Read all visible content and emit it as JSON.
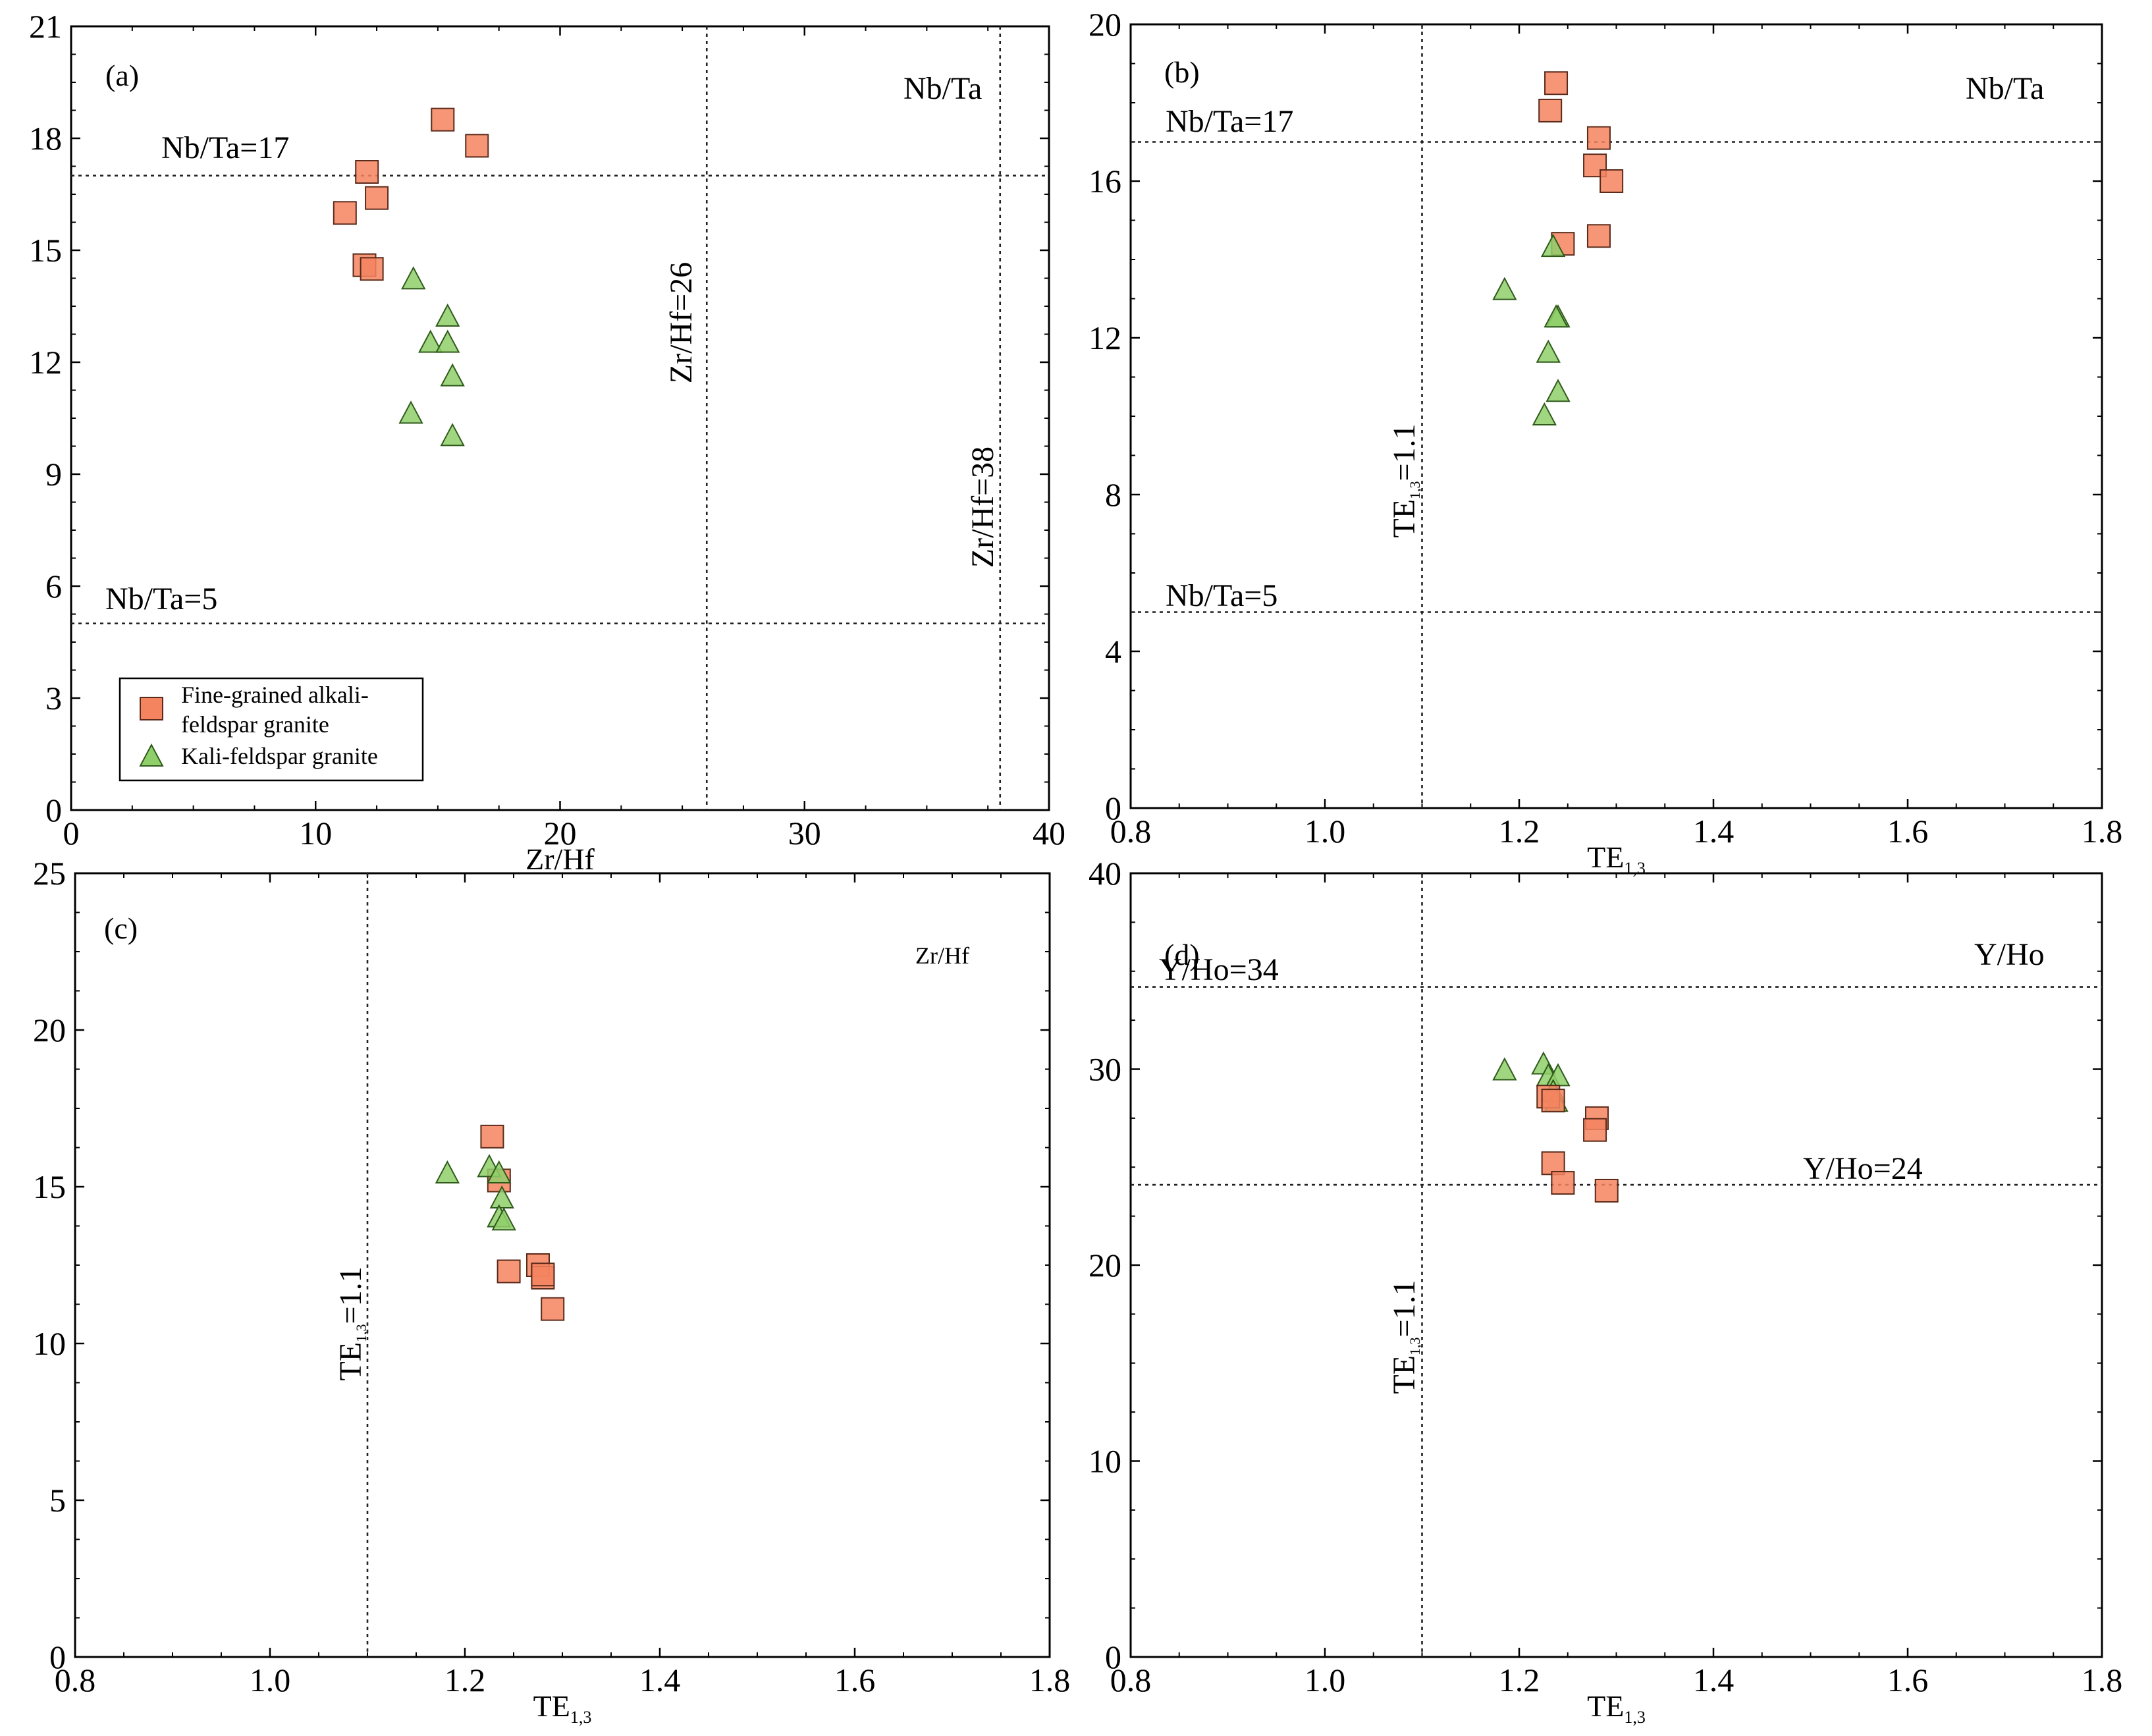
{
  "legend": {
    "items": [
      {
        "label_lines": [
          "Fine-grained alkali-",
          "feldspar granite"
        ],
        "marker": "square",
        "color": "#f4845f"
      },
      {
        "label_lines": [
          "Kali-feldspar granite"
        ],
        "marker": "triangle",
        "color": "#8fcf6a"
      }
    ]
  },
  "chart_data": [
    {
      "id": "a",
      "type": "scatter",
      "panel_label": "(a)",
      "title": "Nb/Ta",
      "xlabel": "Zr/Hf",
      "xlim": [
        0,
        40
      ],
      "ylim": [
        0,
        21
      ],
      "xticks": [
        0,
        10,
        20,
        30,
        40
      ],
      "yticks": [
        0,
        3,
        6,
        9,
        12,
        15,
        18,
        21
      ],
      "hlines": [
        {
          "y": 17,
          "label": "Nb/Ta=17"
        },
        {
          "y": 5,
          "label": "Nb/Ta=5"
        }
      ],
      "vlines": [
        {
          "x": 26,
          "label": "Zr/Hf=26"
        },
        {
          "x": 38,
          "label": "Zr/Hf=38"
        }
      ],
      "series": [
        {
          "name": "Fine-grained alkali-feldspar granite",
          "marker": "square",
          "points": [
            [
              15.2,
              18.5
            ],
            [
              16.6,
              17.8
            ],
            [
              12.1,
              17.1
            ],
            [
              12.5,
              16.4
            ],
            [
              11.2,
              16.0
            ],
            [
              12.0,
              14.6
            ],
            [
              12.3,
              14.5
            ]
          ]
        },
        {
          "name": "Kali-feldspar granite",
          "marker": "triangle",
          "points": [
            [
              14.0,
              14.2
            ],
            [
              15.4,
              13.2
            ],
            [
              14.7,
              12.5
            ],
            [
              15.4,
              12.5
            ],
            [
              15.6,
              11.6
            ],
            [
              13.9,
              10.6
            ],
            [
              15.6,
              10.0
            ]
          ]
        }
      ]
    },
    {
      "id": "b",
      "type": "scatter",
      "panel_label": "(b)",
      "title": "Nb/Ta",
      "xlabel": "TE1,3",
      "xlim": [
        0.8,
        1.8
      ],
      "ylim": [
        0,
        20
      ],
      "xticks": [
        "0.8",
        "1.0",
        "1.2",
        "1.4",
        "1.6",
        "1.8"
      ],
      "yticks": [
        0,
        4,
        8,
        12,
        16,
        20
      ],
      "hlines": [
        {
          "y": 17,
          "label": "Nb/Ta=17"
        },
        {
          "y": 5,
          "label": "Nb/Ta=5"
        }
      ],
      "vlines": [
        {
          "x": 1.1,
          "label": "TE1,3=1.1"
        }
      ],
      "series": [
        {
          "name": "Fine-grained alkali-feldspar granite",
          "marker": "square",
          "points": [
            [
              1.238,
              18.5
            ],
            [
              1.232,
              17.8
            ],
            [
              1.282,
              17.1
            ],
            [
              1.278,
              16.4
            ],
            [
              1.295,
              16.0
            ],
            [
              1.282,
              14.6
            ],
            [
              1.245,
              14.4
            ]
          ]
        },
        {
          "name": "Kali-feldspar granite",
          "marker": "triangle",
          "points": [
            [
              1.235,
              14.3
            ],
            [
              1.185,
              13.2
            ],
            [
              1.24,
              12.5
            ],
            [
              1.238,
              12.5
            ],
            [
              1.23,
              11.6
            ],
            [
              1.24,
              10.6
            ],
            [
              1.226,
              10.0
            ]
          ]
        }
      ]
    },
    {
      "id": "c",
      "type": "scatter",
      "panel_label": "(c)",
      "title": "Zr/Hf",
      "xlabel": "TE1,3",
      "xlim": [
        0.8,
        1.8
      ],
      "ylim": [
        0,
        25
      ],
      "xticks": [
        "0.8",
        "1.0",
        "1.2",
        "1.4",
        "1.6",
        "1.8"
      ],
      "yticks": [
        0,
        5,
        10,
        15,
        20,
        25
      ],
      "hlines": [],
      "vlines": [
        {
          "x": 1.1,
          "label": "TE1,3=1.1"
        }
      ],
      "series": [
        {
          "name": "Fine-grained alkali-feldspar granite",
          "marker": "square",
          "points": [
            [
              1.228,
              16.6
            ],
            [
              1.235,
              15.2
            ],
            [
              1.275,
              12.5
            ],
            [
              1.28,
              12.1
            ],
            [
              1.28,
              12.2
            ],
            [
              1.245,
              12.3
            ],
            [
              1.29,
              11.1
            ]
          ]
        },
        {
          "name": "Kali-feldspar granite",
          "marker": "triangle",
          "points": [
            [
              1.182,
              15.4
            ],
            [
              1.225,
              15.6
            ],
            [
              1.235,
              15.4
            ],
            [
              1.238,
              14.6
            ],
            [
              1.235,
              14.0
            ],
            [
              1.24,
              13.9
            ]
          ]
        }
      ]
    },
    {
      "id": "d",
      "type": "scatter",
      "panel_label": "(d)",
      "title": "Y/Ho",
      "xlabel": "TE1,3",
      "xlim": [
        0.8,
        1.8
      ],
      "ylim": [
        0,
        40
      ],
      "xticks": [
        "0.8",
        "1.0",
        "1.2",
        "1.4",
        "1.6",
        "1.8"
      ],
      "yticks": [
        0,
        10,
        20,
        30,
        40
      ],
      "hlines": [
        {
          "y": 34.2,
          "label": "Y/Ho=34"
        },
        {
          "y": 24.1,
          "label": "Y/Ho=24"
        }
      ],
      "vlines": [
        {
          "x": 1.1,
          "label": "TE1,3=1.1"
        }
      ],
      "series": [
        {
          "name": "Kali-feldspar granite",
          "marker": "triangle",
          "points": [
            [
              1.185,
              29.9
            ],
            [
              1.225,
              30.2
            ],
            [
              1.23,
              29.6
            ],
            [
              1.24,
              29.6
            ],
            [
              1.235,
              28.8
            ],
            [
              1.238,
              28.3
            ]
          ]
        },
        {
          "name": "Fine-grained alkali-feldspar granite",
          "marker": "square",
          "points": [
            [
              1.23,
              28.6
            ],
            [
              1.235,
              28.4
            ],
            [
              1.28,
              27.5
            ],
            [
              1.278,
              26.9
            ],
            [
              1.235,
              25.2
            ],
            [
              1.245,
              24.2
            ],
            [
              1.29,
              23.8
            ]
          ]
        }
      ]
    }
  ]
}
